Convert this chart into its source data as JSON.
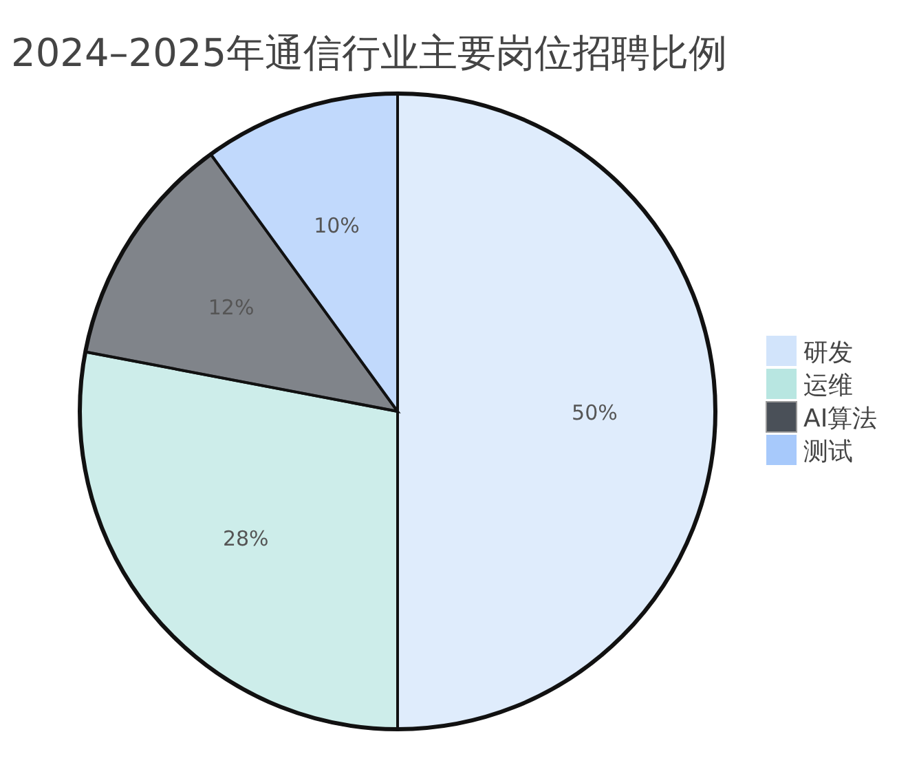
{
  "chart_data": {
    "type": "pie",
    "title": "2024–2025年通信行业主要岗位招聘比例",
    "categories": [
      "研发",
      "运维",
      "AI算法",
      "测试"
    ],
    "values": [
      50,
      28,
      12,
      10
    ],
    "colors": [
      "#d2e4fb",
      "#b8e6e1",
      "#4a5058",
      "#a7c9fb"
    ],
    "value_labels": [
      "50%",
      "28%",
      "12%",
      "10%"
    ],
    "legend": "right"
  }
}
